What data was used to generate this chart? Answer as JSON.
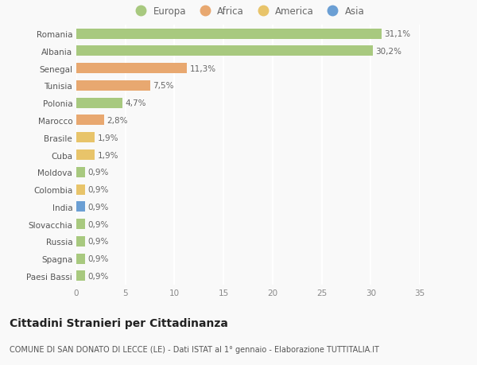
{
  "categories": [
    "Paesi Bassi",
    "Spagna",
    "Russia",
    "Slovacchia",
    "India",
    "Colombia",
    "Moldova",
    "Cuba",
    "Brasile",
    "Marocco",
    "Polonia",
    "Tunisia",
    "Senegal",
    "Albania",
    "Romania"
  ],
  "values": [
    0.9,
    0.9,
    0.9,
    0.9,
    0.9,
    0.9,
    0.9,
    1.9,
    1.9,
    2.8,
    4.7,
    7.5,
    11.3,
    30.2,
    31.1
  ],
  "labels": [
    "0,9%",
    "0,9%",
    "0,9%",
    "0,9%",
    "0,9%",
    "0,9%",
    "0,9%",
    "1,9%",
    "1,9%",
    "2,8%",
    "4,7%",
    "7,5%",
    "11,3%",
    "30,2%",
    "31,1%"
  ],
  "colors": [
    "#a8c97f",
    "#a8c97f",
    "#a8c97f",
    "#a8c97f",
    "#6b9fd4",
    "#e8c46a",
    "#a8c97f",
    "#e8c46a",
    "#e8c46a",
    "#e8a870",
    "#a8c97f",
    "#e8a870",
    "#e8a870",
    "#a8c97f",
    "#a8c97f"
  ],
  "legend_labels": [
    "Europa",
    "Africa",
    "America",
    "Asia"
  ],
  "legend_colors": [
    "#a8c97f",
    "#e8a870",
    "#e8c46a",
    "#6b9fd4"
  ],
  "title": "Cittadini Stranieri per Cittadinanza",
  "subtitle": "COMUNE DI SAN DONATO DI LECCE (LE) - Dati ISTAT al 1° gennaio - Elaborazione TUTTITALIA.IT",
  "xlim": [
    0,
    35
  ],
  "xticks": [
    0,
    5,
    10,
    15,
    20,
    25,
    30,
    35
  ],
  "background_color": "#f9f9f9",
  "grid_color": "#ffffff",
  "bar_height": 0.6,
  "label_fontsize": 7.5,
  "tick_fontsize": 7.5,
  "legend_fontsize": 8.5,
  "title_fontsize": 10,
  "subtitle_fontsize": 7
}
